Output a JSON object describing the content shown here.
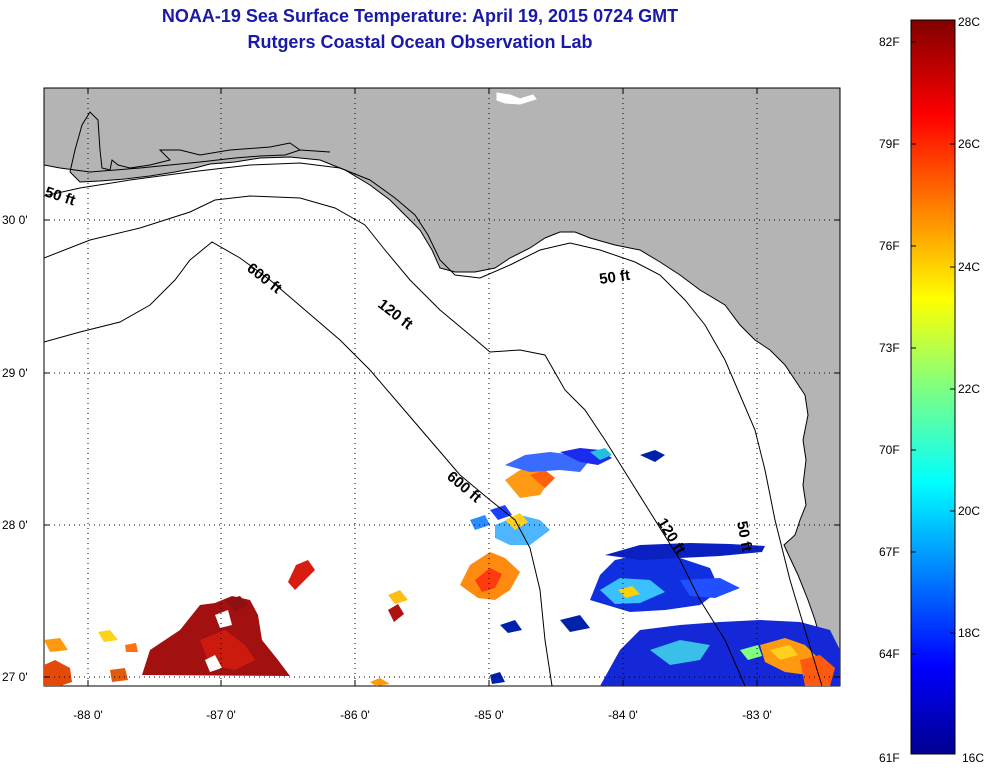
{
  "title_line1": "NOAA-19 Sea Surface Temperature:  April 19, 2015 0724 GMT",
  "title_line2": "Rutgers Coastal Ocean Observation Lab",
  "map": {
    "lon_labels": [
      "-88 0'",
      "-87 0'",
      "-86 0'",
      "-85 0'",
      "-84 0'",
      "-83 0'"
    ],
    "lat_labels": [
      "30 0'",
      "29 0'",
      "28 0'",
      "27 0'"
    ],
    "contour_labels": [
      "50 ft",
      "600 ft",
      "120 ft",
      "50 ft",
      "600 ft",
      "120 ft",
      "50 ft"
    ],
    "land_color": "#b4b4b4",
    "ocean_color": "#ffffff"
  },
  "colorbar": {
    "celsius_labels": [
      "28C",
      "26C",
      "24C",
      "22C",
      "20C",
      "18C",
      "16C"
    ],
    "fahrenheit_labels": [
      "82F",
      "79F",
      "76F",
      "73F",
      "70F",
      "67F",
      "64F",
      "61F"
    ],
    "colormap": [
      "#800000",
      "#ff0000",
      "#ff8000",
      "#ffff00",
      "#80ff80",
      "#00ffff",
      "#0080ff",
      "#0000ff",
      "#00008f"
    ]
  }
}
